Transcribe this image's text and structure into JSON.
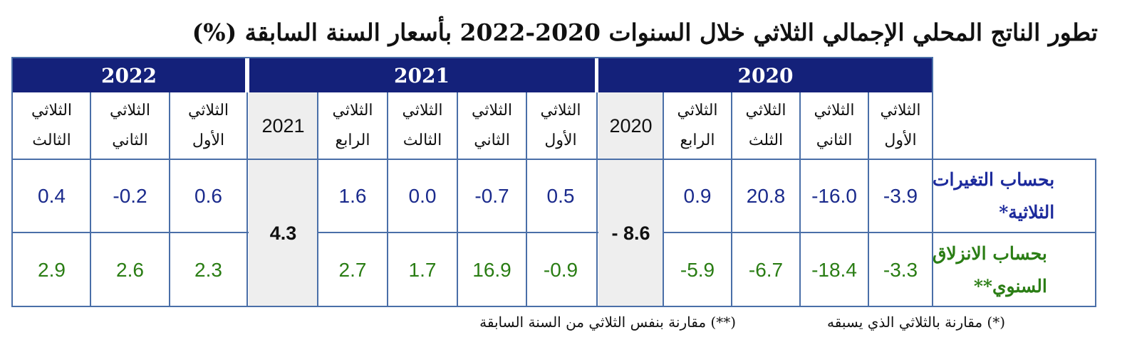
{
  "title": "تطور الناتج المحلي الإجمالي الثلاثي خلال السنوات 2020-2022 بأسعار السنة السابقة (%)",
  "years": [
    "2022",
    "2021",
    "2020"
  ],
  "quarter_headers": {
    "q2022_3": "الثلاثي\nالثالث",
    "q2022_2": "الثلاثي\nالثاني",
    "q2022_1": "الثلاثي\nالأول",
    "annual_2021": "2021",
    "q2021_4": "الثلاثي\nالرابع",
    "q2021_3": "الثلاثي\nالثالث",
    "q2021_2": "الثلاثي\nالثاني",
    "q2021_1": "الثلاثي\nالأول",
    "annual_2020": "2020",
    "q2020_4": "الثلاثي\nالرابع",
    "q2020_3": "الثلاثي\nالثلث",
    "q2020_2": "الثلاثي\nالثاني",
    "q2020_1": "الثلاثي\nالأول"
  },
  "rows": {
    "quarterly": {
      "label_line1": "بحساب التغيرات",
      "label_line2": "الثلاثية*",
      "q2022_3": "0.4",
      "q2022_2": "-0.2",
      "q2022_1": "0.6",
      "q2021_4": "1.6",
      "q2021_3": "0.0",
      "q2021_2": "-0.7",
      "q2021_1": "0.5",
      "q2020_4": "0.9",
      "q2020_3": "20.8",
      "q2020_2": "-16.0",
      "q2020_1": "-3.9"
    },
    "annual_slide": {
      "label_line1": "بحساب الانزلاق",
      "label_line2": "السنوي**",
      "q2022_3": "2.9",
      "q2022_2": "2.6",
      "q2022_1": "2.3",
      "q2021_4": "2.7",
      "q2021_3": "1.7",
      "q2021_2": "16.9",
      "q2021_1": "-0.9",
      "q2020_4": "-5.9",
      "q2020_3": "-6.7",
      "q2020_2": "-18.4",
      "q2020_1": "-3.3"
    }
  },
  "annual_values": {
    "y2021": "4.3",
    "y2020": "- 8.6"
  },
  "footnotes": {
    "quarter_note": "(*) مقارنة بالثلاثي الذي يسبقه",
    "year_note": "(**) مقارنة بنفس الثلاثي من السنة السابقة"
  },
  "colors": {
    "header_bg": "#14217a",
    "quarterly_values": "#1a2a8c",
    "annual_slide_values": "#2a7d14",
    "annual_bg": "#eeeeee",
    "grid_lines": "#4a6fa8"
  }
}
